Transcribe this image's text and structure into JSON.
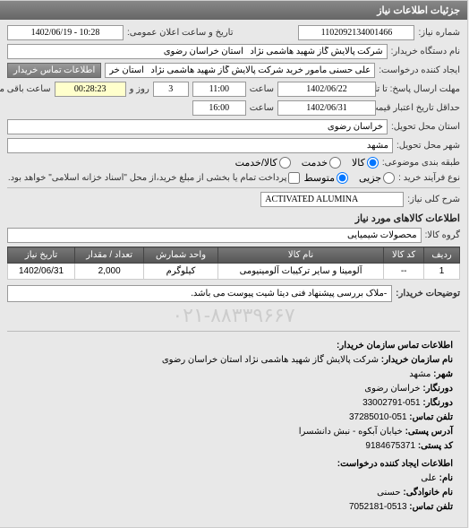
{
  "panel": {
    "title": "جزئیات اطلاعات نیاز"
  },
  "form": {
    "need_no_label": "شماره نیاز:",
    "need_no": "1102092134001466",
    "announce_label": "تاریخ و ساعت اعلان عمومی:",
    "announce_value": "1402/06/19 - 10:28",
    "buyer_org_label": "نام دستگاه خریدار:",
    "buyer_org": "شرکت پالایش گاز شهید هاشمی نژاد   استان خراسان رضوی",
    "requester_label": "ایجاد کننده درخواست:",
    "requester": "علی حسنی مامور خرید شرکت پالایش گاز شهید هاشمی نژاد   استان خراسا",
    "contact_btn": "اطلاعات تماس خریدار",
    "deadline_label": "مهلت ارسال پاسخ: تا تاریخ:",
    "deadline_date": "1402/06/22",
    "time_label": "ساعت",
    "deadline_time": "11:00",
    "days_and": "روز و",
    "days_left": "3",
    "time_left": "00:28:23",
    "time_left_label": "ساعت باقی مانده",
    "validity_label": "حداقل تاریخ اعتبار قیمت: تا تاریخ:",
    "validity_date": "1402/06/31",
    "validity_time": "16:00",
    "delivery_prov_label": "استان محل تحویل:",
    "delivery_prov": "خراسان رضوی",
    "delivery_city_label": "شهر محل تحویل:",
    "delivery_city": "مشهد",
    "category_label": "طبقه بندی موضوعی:",
    "cat_goods": "کالا",
    "cat_service": "خدمت",
    "cat_both": "کالا/خدمت",
    "purchase_type_label": "نوع فرآیند خرید :",
    "pt_small": "جزیی",
    "pt_medium": "متوسط",
    "pt_note": "پرداخت تمام یا بخشی از مبلغ خرید،از محل \"اسناد خزانه اسلامی\" خواهد بود.",
    "need_title_label": "شرح کلی نیاز:",
    "need_title": "ACTIVATED ALUMINA"
  },
  "items": {
    "section": "اطلاعات کالاهای مورد نیاز",
    "group_label": "گروه کالا:",
    "group": "محصولات شیمیایی",
    "cols": {
      "row": "ردیف",
      "code": "کد کالا",
      "name": "نام کالا",
      "unit": "واحد شمارش",
      "qty": "تعداد / مقدار",
      "date": "تاریخ نیاز"
    },
    "rows": [
      {
        "row": "1",
        "code": "--",
        "name": "آلومینا و سایر ترکیبات آلومینیومی",
        "unit": "کیلوگرم",
        "qty": "2,000",
        "date": "1402/06/31"
      }
    ]
  },
  "desc": {
    "label": "توضیحات خریدار:",
    "text": "-ملاک بررسی پیشنهاد فنی دیتا شیت پیوست می باشد."
  },
  "watermark": "۰۲۱-۸۸۳۳۹۶۶۷",
  "contact": {
    "section": "اطلاعات تماس سازمان خریدار:",
    "org_label": "نام سازمان خریدار:",
    "org": "شرکت پالایش گاز شهید هاشمی نژاد استان خراسان رضوی",
    "city_label": "شهر:",
    "city": "مشهد",
    "prov_label": "دورنگار:",
    "prov": "خراسان رضوی",
    "fax_label": "دورنگار:",
    "fax": "051-33002791",
    "phone_label": "تلفن تماس:",
    "phone": "051-37285010",
    "addr_label": "آدرس پستی:",
    "addr": "خیابان آبکوه - نبش دانشسرا",
    "postal_label": "کد پستی:",
    "postal": "9184675371",
    "creator_section": "اطلاعات ایجاد کننده درخواست:",
    "fname_label": "نام:",
    "fname": "علی",
    "lname_label": "نام خانوادگی:",
    "lname": "حسنی",
    "cphone_label": "تلفن تماس:",
    "cphone": "0513-7052181"
  }
}
